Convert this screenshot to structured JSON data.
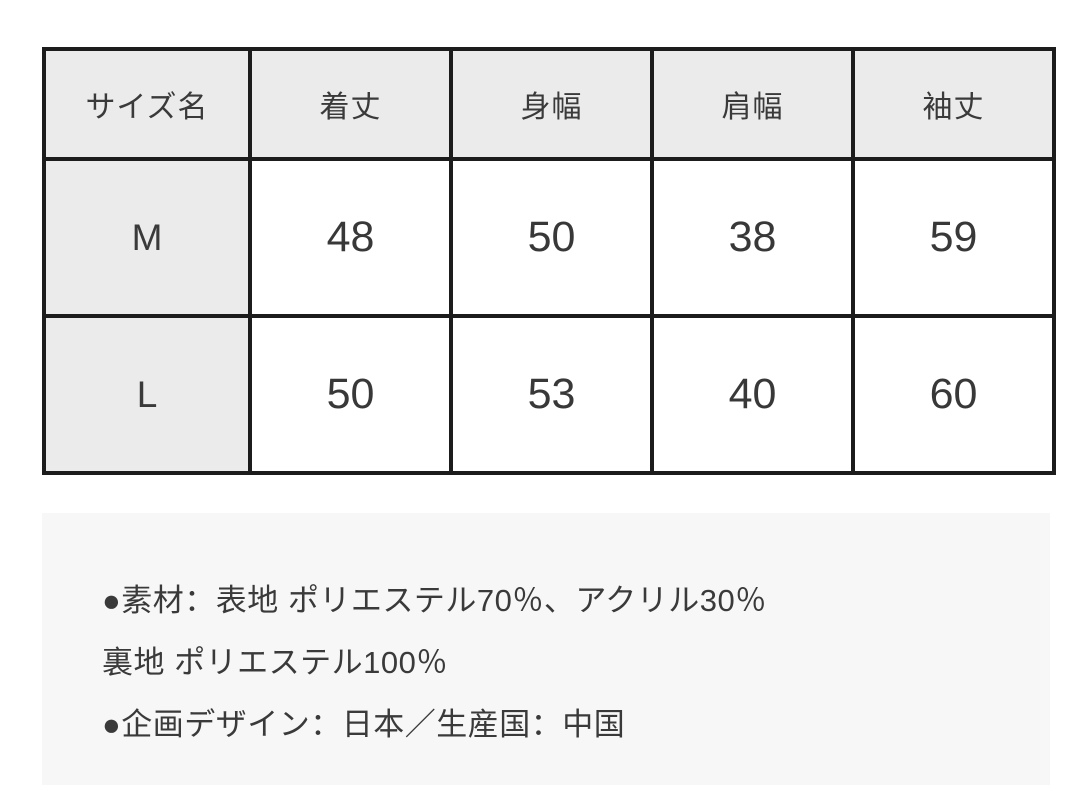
{
  "size_table": {
    "columns": [
      "サイズ名",
      "着丈",
      "身幅",
      "肩幅",
      "袖丈"
    ],
    "rows": [
      {
        "size": "M",
        "values": [
          "48",
          "50",
          "38",
          "59"
        ]
      },
      {
        "size": "L",
        "values": [
          "50",
          "53",
          "40",
          "60"
        ]
      }
    ]
  },
  "product_info": {
    "material_line": "●素材：表地 ポリエステル70％、アクリル30％",
    "lining_line": "裏地 ポリエステル100％",
    "origin_line": "●企画デザイン：日本／生産国：中国"
  },
  "colors": {
    "table_border": "#1c1c1c",
    "header_cell_bg": "#ebebeb",
    "data_cell_bg": "#ffffff",
    "info_box_bg": "#f7f7f7",
    "text": "#3a3a3a",
    "page_bg": "#ffffff"
  }
}
